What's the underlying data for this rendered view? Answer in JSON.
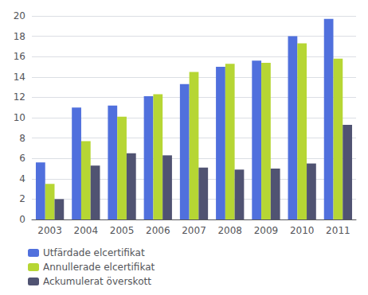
{
  "chart_data": {
    "type": "bar",
    "categories": [
      "2003",
      "2004",
      "2005",
      "2006",
      "2007",
      "2008",
      "2009",
      "2010",
      "2011"
    ],
    "series": [
      {
        "name": "Utfärdade elcertifikat",
        "values": [
          5.6,
          11.0,
          11.2,
          12.1,
          13.3,
          15.0,
          15.6,
          18.0,
          19.7
        ]
      },
      {
        "name": "Annullerade elcertifikat",
        "values": [
          3.5,
          7.7,
          10.1,
          12.3,
          14.5,
          15.3,
          15.4,
          17.3,
          15.8
        ]
      },
      {
        "name": "Ackumulerat överskott",
        "values": [
          2.0,
          5.3,
          6.5,
          6.3,
          5.1,
          4.9,
          5.0,
          5.5,
          9.3
        ]
      }
    ],
    "ylim": [
      0,
      20
    ],
    "yticks": [
      0,
      2,
      4,
      6,
      8,
      10,
      12,
      14,
      16,
      18,
      20
    ],
    "grid": true,
    "legend": "lower left"
  }
}
